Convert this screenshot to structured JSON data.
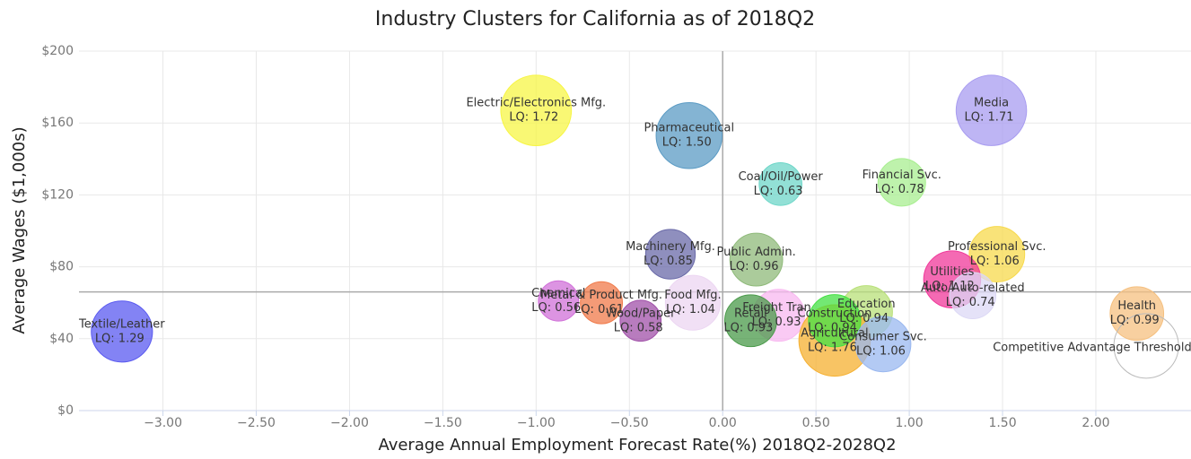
{
  "chart_data": {
    "type": "bubble",
    "title": "Industry Clusters for California as of 2018Q2",
    "x_label": "Average Annual Employment Forecast Rate(%) 2018Q2-2028Q2",
    "y_label": "Average Wages ($1,000s)",
    "xlim": [
      -3.45,
      2.51
    ],
    "ylim": [
      0,
      200
    ],
    "xticks": [
      {
        "value": -3,
        "label": "−3.00"
      },
      {
        "value": -2.5,
        "label": "−2.50"
      },
      {
        "value": -2,
        "label": "−2.00"
      },
      {
        "value": -1.5,
        "label": "−1.50"
      },
      {
        "value": -1,
        "label": "−1.00"
      },
      {
        "value": -0.5,
        "label": "−0.50"
      },
      {
        "value": 0,
        "label": "0.00"
      },
      {
        "value": 0.5,
        "label": "0.50"
      },
      {
        "value": 1,
        "label": "1.00"
      },
      {
        "value": 1.5,
        "label": "1.50"
      },
      {
        "value": 2,
        "label": "2.00"
      }
    ],
    "yticks": [
      {
        "value": 0,
        "label": "$0"
      },
      {
        "value": 40,
        "label": "$40"
      },
      {
        "value": 80,
        "label": "$80"
      },
      {
        "value": 120,
        "label": "$120"
      },
      {
        "value": 160,
        "label": "$160"
      },
      {
        "value": 200,
        "label": "$200"
      }
    ],
    "grid": true,
    "reference_lines": {
      "x": 0,
      "y": 66
    },
    "points": [
      {
        "name": "Textile/Leather",
        "x": -3.22,
        "y": 44,
        "size": 1.29,
        "size_label": "LQ: 1.29",
        "color": "#5a5af0"
      },
      {
        "name": "Electric/Electronics Mfg.",
        "x": -1.0,
        "y": 167,
        "size": 1.72,
        "size_label": "LQ: 1.72",
        "color": "#f7f545"
      },
      {
        "name": "Pharmaceutical",
        "x": -0.18,
        "y": 153,
        "size": 1.5,
        "size_label": "LQ: 1.50",
        "color": "#5b9bc4"
      },
      {
        "name": "Coal/Oil/Power",
        "x": 0.31,
        "y": 126,
        "size": 0.63,
        "size_label": "LQ: 0.63",
        "color": "#6dd6c8"
      },
      {
        "name": "Financial Svc.",
        "x": 0.96,
        "y": 127,
        "size": 0.78,
        "size_label": "LQ: 0.78",
        "color": "#a8ee90"
      },
      {
        "name": "Media",
        "x": 1.44,
        "y": 167,
        "size": 1.71,
        "size_label": "LQ: 1.71",
        "color": "#a89cf0"
      },
      {
        "name": "Professional Svc.",
        "x": 1.47,
        "y": 87,
        "size": 1.06,
        "size_label": "LQ: 1.06",
        "color": "#f7d94c"
      },
      {
        "name": "Utilities",
        "x": 1.23,
        "y": 73,
        "size": 1.12,
        "size_label": "LQ: 1.12",
        "color": "#f0389a"
      },
      {
        "name": "Auto/Auto-related",
        "x": 1.34,
        "y": 64,
        "size": 0.74,
        "size_label": "LQ: 0.74",
        "color": "#dcd8f5"
      },
      {
        "name": "Machinery Mfg.",
        "x": -0.28,
        "y": 87,
        "size": 0.85,
        "size_label": "LQ: 0.85",
        "color": "#6a6aa8"
      },
      {
        "name": "Public Admin.",
        "x": 0.18,
        "y": 84,
        "size": 0.96,
        "size_label": "LQ: 0.96",
        "color": "#8fba7a"
      },
      {
        "name": "Chemical",
        "x": -0.88,
        "y": 61,
        "size": 0.56,
        "size_label": "LQ: 0.56",
        "color": "#d070d8"
      },
      {
        "name": "Metal & Product Mfg.",
        "x": -0.65,
        "y": 60,
        "size": 0.61,
        "size_label": "LQ: 0.61",
        "color": "#f07a4a"
      },
      {
        "name": "Wood/Paper",
        "x": -0.44,
        "y": 50,
        "size": 0.58,
        "size_label": "LQ: 0.58",
        "color": "#a050a8"
      },
      {
        "name": "Food Mfg.",
        "x": -0.16,
        "y": 60,
        "size": 1.04,
        "size_label": "LQ: 1.04",
        "color": "#ecd6f2"
      },
      {
        "name": "Freight Tran.",
        "x": 0.3,
        "y": 53,
        "size": 0.93,
        "size_label": "LQ: 0.93",
        "color": "#f8b8f0"
      },
      {
        "name": "Retail",
        "x": 0.15,
        "y": 50,
        "size": 0.93,
        "size_label": "LQ: 0.93",
        "color": "#4a9a4a"
      },
      {
        "name": "Education",
        "x": 0.77,
        "y": 55,
        "size": 0.94,
        "size_label": "LQ: 0.94",
        "color": "#b8e078"
      },
      {
        "name": "Agricultural",
        "x": 0.6,
        "y": 39,
        "size": 1.76,
        "size_label": "LQ: 1.76",
        "color": "#f5b030"
      },
      {
        "name": "Construction",
        "x": 0.6,
        "y": 50,
        "size": 0.94,
        "size_label": "LQ: 0.94",
        "color": "#44e044"
      },
      {
        "name": "Consumer Svc.",
        "x": 0.86,
        "y": 37,
        "size": 1.06,
        "size_label": "LQ: 1.06",
        "color": "#9ab8f0"
      },
      {
        "name": "Health",
        "x": 2.22,
        "y": 54,
        "size": 0.99,
        "size_label": "LQ: 0.99",
        "color": "#f5c080"
      }
    ],
    "threshold": {
      "label": "Competitive Advantage Threshold",
      "x": 2.27,
      "y": 36,
      "size": 1.44
    }
  }
}
